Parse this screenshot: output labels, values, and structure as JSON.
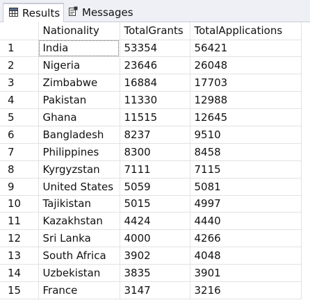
{
  "tabs": {
    "results_label": "Results",
    "messages_label": "Messages"
  },
  "grid": {
    "columns": [
      "Nationality",
      "TotalGrants",
      "TotalApplications"
    ],
    "rows": [
      {
        "num": "1",
        "nationality": "India",
        "grants": "53354",
        "applications": "56421"
      },
      {
        "num": "2",
        "nationality": "Nigeria",
        "grants": "23646",
        "applications": "26048"
      },
      {
        "num": "3",
        "nationality": "Zimbabwe",
        "grants": "16884",
        "applications": "17703"
      },
      {
        "num": "4",
        "nationality": "Pakistan",
        "grants": "11330",
        "applications": "12988"
      },
      {
        "num": "5",
        "nationality": "Ghana",
        "grants": "11515",
        "applications": "12645"
      },
      {
        "num": "6",
        "nationality": "Bangladesh",
        "grants": "8237",
        "applications": "9510"
      },
      {
        "num": "7",
        "nationality": "Philippines",
        "grants": "8300",
        "applications": "8458"
      },
      {
        "num": "8",
        "nationality": "Kyrgyzstan",
        "grants": "7111",
        "applications": "7115"
      },
      {
        "num": "9",
        "nationality": "United States",
        "grants": "5059",
        "applications": "5081"
      },
      {
        "num": "10",
        "nationality": "Tajikistan",
        "grants": "5015",
        "applications": "4997"
      },
      {
        "num": "11",
        "nationality": "Kazakhstan",
        "grants": "4424",
        "applications": "4440"
      },
      {
        "num": "12",
        "nationality": "Sri Lanka",
        "grants": "4000",
        "applications": "4266"
      },
      {
        "num": "13",
        "nationality": "South Africa",
        "grants": "3902",
        "applications": "4048"
      },
      {
        "num": "14",
        "nationality": "Uzbekistan",
        "grants": "3835",
        "applications": "3901"
      },
      {
        "num": "15",
        "nationality": "France",
        "grants": "3147",
        "applications": "3216"
      }
    ]
  }
}
